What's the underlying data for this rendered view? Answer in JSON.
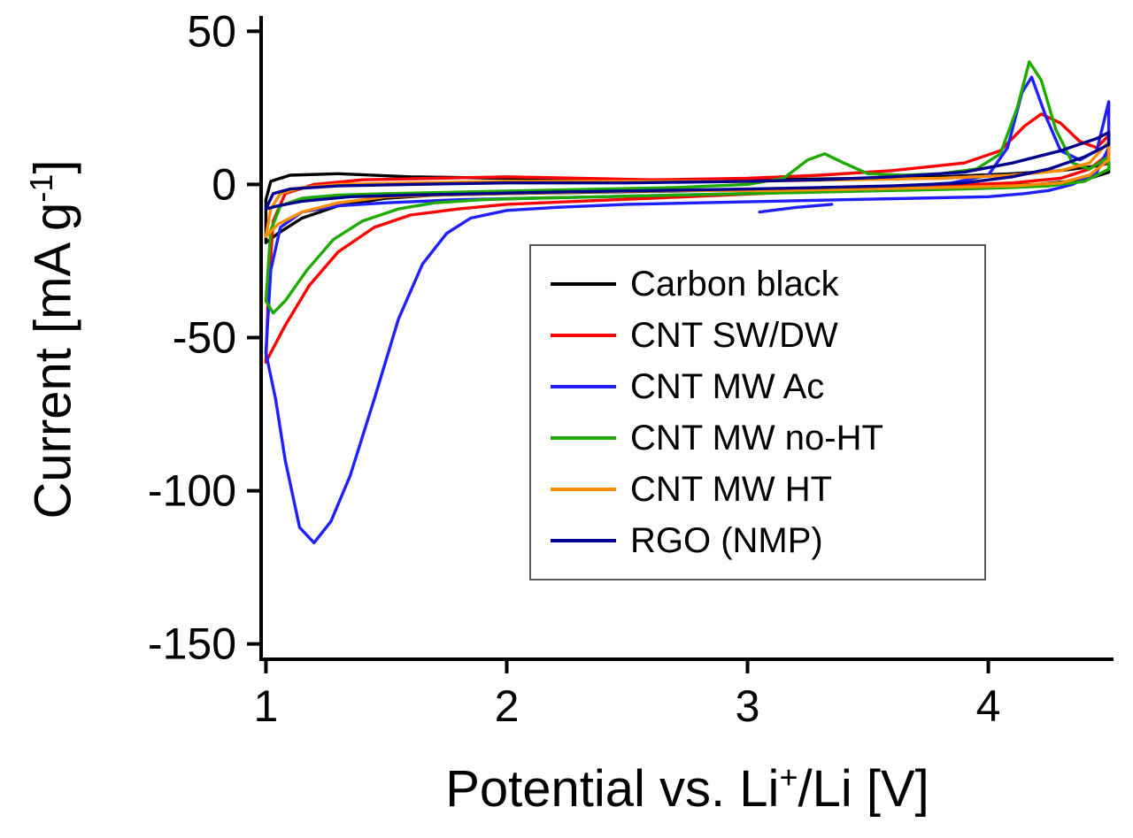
{
  "chart_data": {
    "type": "line",
    "subtype": "cyclic-voltammogram",
    "title": "",
    "xlabel": {
      "pre": "Potential vs. Li",
      "sup": "+",
      "post": "/Li [V]"
    },
    "ylabel": {
      "pre": "Current [mA g",
      "sup": "-1",
      "post": "]"
    },
    "xlim": [
      0.98,
      4.52
    ],
    "ylim": [
      -155,
      55
    ],
    "xtick_values": [
      1,
      2,
      3,
      4
    ],
    "xtick_labels": [
      "1",
      "2",
      "3",
      "4"
    ],
    "ytick_values": [
      50,
      0,
      -50,
      -100,
      -150
    ],
    "ytick_labels": [
      "50",
      "0",
      "-50",
      "-100",
      "-150"
    ],
    "grid": false,
    "legend_position": "inside center-right",
    "axis_color": "#000000",
    "series": [
      {
        "name": "Carbon black",
        "color": "#000000",
        "paths": [
          [
            [
              1.0,
              -19
            ],
            [
              1.0,
              -5
            ],
            [
              1.02,
              1
            ],
            [
              1.1,
              3
            ],
            [
              1.3,
              3.5
            ],
            [
              1.6,
              2.5
            ],
            [
              2.0,
              2
            ],
            [
              2.5,
              1.5
            ],
            [
              3.0,
              1.5
            ],
            [
              3.5,
              2
            ],
            [
              3.8,
              2.5
            ],
            [
              4.1,
              3.5
            ],
            [
              4.3,
              4.5
            ],
            [
              4.45,
              6
            ],
            [
              4.5,
              7
            ],
            [
              4.5,
              4
            ],
            [
              4.4,
              1.5
            ],
            [
              4.2,
              0
            ],
            [
              4.0,
              -0.5
            ],
            [
              3.6,
              -1
            ],
            [
              3.2,
              -1.5
            ],
            [
              2.8,
              -2
            ],
            [
              2.4,
              -2.5
            ],
            [
              2.0,
              -3
            ],
            [
              1.7,
              -3.5
            ],
            [
              1.5,
              -4.5
            ],
            [
              1.3,
              -7
            ],
            [
              1.15,
              -11
            ],
            [
              1.05,
              -16
            ],
            [
              1.0,
              -19
            ]
          ]
        ]
      },
      {
        "name": "CNT SW/DW",
        "color": "#ff0000",
        "paths": [
          [
            [
              1.0,
              -58
            ],
            [
              1.01,
              -35
            ],
            [
              1.03,
              -12
            ],
            [
              1.08,
              -3
            ],
            [
              1.2,
              0
            ],
            [
              1.4,
              1.5
            ],
            [
              1.7,
              2
            ],
            [
              2.0,
              2.5
            ],
            [
              2.3,
              2
            ],
            [
              2.6,
              1.5
            ],
            [
              3.0,
              2
            ],
            [
              3.3,
              3
            ],
            [
              3.6,
              4.5
            ],
            [
              3.9,
              7
            ],
            [
              4.05,
              11
            ],
            [
              4.15,
              19
            ],
            [
              4.22,
              23
            ],
            [
              4.3,
              20
            ],
            [
              4.38,
              14
            ],
            [
              4.45,
              12
            ],
            [
              4.5,
              16
            ],
            [
              4.5,
              10
            ],
            [
              4.42,
              5
            ],
            [
              4.3,
              2
            ],
            [
              4.1,
              0.5
            ],
            [
              3.8,
              -0.5
            ],
            [
              3.5,
              -1.5
            ],
            [
              3.2,
              -2.5
            ],
            [
              2.9,
              -3.5
            ],
            [
              2.6,
              -4.5
            ],
            [
              2.3,
              -5.5
            ],
            [
              2.0,
              -6.5
            ],
            [
              1.8,
              -8
            ],
            [
              1.6,
              -10
            ],
            [
              1.45,
              -14
            ],
            [
              1.3,
              -22
            ],
            [
              1.18,
              -33
            ],
            [
              1.08,
              -46
            ],
            [
              1.0,
              -58
            ]
          ]
        ]
      },
      {
        "name": "CNT MW Ac",
        "color": "#1f1fff",
        "paths": [
          [
            [
              1.0,
              -55
            ],
            [
              1.02,
              -28
            ],
            [
              1.06,
              -14
            ],
            [
              1.15,
              -9
            ],
            [
              1.3,
              -7
            ],
            [
              1.5,
              -6
            ],
            [
              1.8,
              -5
            ],
            [
              2.1,
              -4.5
            ],
            [
              2.4,
              -4
            ],
            [
              2.7,
              -3.5
            ],
            [
              3.0,
              -3
            ],
            [
              3.3,
              -2
            ],
            [
              3.6,
              -1
            ],
            [
              3.85,
              0.5
            ],
            [
              4.0,
              3
            ],
            [
              4.08,
              12
            ],
            [
              4.14,
              30
            ],
            [
              4.18,
              35
            ],
            [
              4.24,
              22
            ],
            [
              4.3,
              11
            ],
            [
              4.38,
              8
            ],
            [
              4.45,
              11
            ],
            [
              4.5,
              27
            ],
            [
              4.5,
              12
            ],
            [
              4.45,
              4
            ],
            [
              4.35,
              0
            ],
            [
              4.25,
              -2
            ],
            [
              4.15,
              -3
            ],
            [
              4.0,
              -4
            ],
            [
              3.7,
              -4.5
            ],
            [
              3.4,
              -5
            ],
            [
              3.1,
              -5.5
            ],
            [
              2.8,
              -6
            ],
            [
              2.5,
              -6.5
            ],
            [
              2.2,
              -7.5
            ],
            [
              2.0,
              -8.5
            ],
            [
              1.85,
              -11
            ],
            [
              1.75,
              -16
            ],
            [
              1.65,
              -26
            ],
            [
              1.55,
              -44
            ],
            [
              1.45,
              -70
            ],
            [
              1.35,
              -95
            ],
            [
              1.27,
              -110
            ],
            [
              1.2,
              -117
            ],
            [
              1.14,
              -112
            ],
            [
              1.08,
              -90
            ],
            [
              1.04,
              -70
            ],
            [
              1.0,
              -55
            ]
          ],
          [
            [
              3.05,
              -9
            ],
            [
              3.2,
              -7.5
            ],
            [
              3.35,
              -6.5
            ]
          ]
        ]
      },
      {
        "name": "CNT MW no-HT",
        "color": "#1faa00",
        "paths": [
          [
            [
              1.0,
              -38
            ],
            [
              1.02,
              -15
            ],
            [
              1.06,
              -7
            ],
            [
              1.15,
              -4.5
            ],
            [
              1.3,
              -3.5
            ],
            [
              1.5,
              -3
            ],
            [
              1.8,
              -2.5
            ],
            [
              2.1,
              -2
            ],
            [
              2.4,
              -1.5
            ],
            [
              2.7,
              -1
            ],
            [
              3.0,
              0
            ],
            [
              3.15,
              2
            ],
            [
              3.25,
              8
            ],
            [
              3.32,
              10
            ],
            [
              3.4,
              7
            ],
            [
              3.5,
              3.5
            ],
            [
              3.65,
              3
            ],
            [
              3.8,
              3.5
            ],
            [
              3.95,
              5
            ],
            [
              4.05,
              10
            ],
            [
              4.12,
              25
            ],
            [
              4.17,
              40
            ],
            [
              4.22,
              34
            ],
            [
              4.28,
              18
            ],
            [
              4.35,
              7
            ],
            [
              4.42,
              5
            ],
            [
              4.5,
              9
            ],
            [
              4.5,
              5
            ],
            [
              4.4,
              1
            ],
            [
              4.25,
              -0.5
            ],
            [
              4.1,
              -1
            ],
            [
              3.9,
              -1.5
            ],
            [
              3.6,
              -2
            ],
            [
              3.3,
              -2.5
            ],
            [
              3.0,
              -3
            ],
            [
              2.7,
              -3.5
            ],
            [
              2.4,
              -4
            ],
            [
              2.1,
              -4.5
            ],
            [
              1.9,
              -5
            ],
            [
              1.7,
              -6
            ],
            [
              1.55,
              -8
            ],
            [
              1.4,
              -12
            ],
            [
              1.28,
              -18
            ],
            [
              1.17,
              -28
            ],
            [
              1.08,
              -38
            ],
            [
              1.03,
              -42
            ],
            [
              1.0,
              -38
            ]
          ]
        ]
      },
      {
        "name": "CNT MW HT",
        "color": "#ff8c00",
        "paths": [
          [
            [
              1.0,
              -17
            ],
            [
              1.02,
              -8
            ],
            [
              1.06,
              -3
            ],
            [
              1.15,
              -1
            ],
            [
              1.3,
              0
            ],
            [
              1.6,
              0.5
            ],
            [
              2.0,
              1
            ],
            [
              2.5,
              1
            ],
            [
              3.0,
              1
            ],
            [
              3.4,
              1.5
            ],
            [
              3.8,
              2
            ],
            [
              4.1,
              3
            ],
            [
              4.3,
              4.5
            ],
            [
              4.42,
              7
            ],
            [
              4.5,
              14
            ],
            [
              4.5,
              8
            ],
            [
              4.42,
              3
            ],
            [
              4.3,
              0.5
            ],
            [
              4.1,
              -0.5
            ],
            [
              3.8,
              -1
            ],
            [
              3.5,
              -1.5
            ],
            [
              3.1,
              -2
            ],
            [
              2.7,
              -2
            ],
            [
              2.3,
              -2.5
            ],
            [
              2.0,
              -3
            ],
            [
              1.7,
              -3.5
            ],
            [
              1.5,
              -4
            ],
            [
              1.3,
              -6
            ],
            [
              1.15,
              -9
            ],
            [
              1.05,
              -13
            ],
            [
              1.0,
              -17
            ]
          ]
        ]
      },
      {
        "name": "RGO (NMP)",
        "color": "#00008f",
        "paths": [
          [
            [
              1.0,
              -8
            ],
            [
              1.03,
              -3
            ],
            [
              1.1,
              -1.5
            ],
            [
              1.3,
              -0.5
            ],
            [
              1.6,
              0
            ],
            [
              2.0,
              0.5
            ],
            [
              2.5,
              0.5
            ],
            [
              3.0,
              1
            ],
            [
              3.3,
              1.5
            ],
            [
              3.6,
              2.5
            ],
            [
              3.9,
              4
            ],
            [
              4.1,
              7
            ],
            [
              4.3,
              11
            ],
            [
              4.45,
              15
            ],
            [
              4.5,
              17
            ],
            [
              4.5,
              13
            ],
            [
              4.4,
              9
            ],
            [
              4.25,
              5
            ],
            [
              4.1,
              2.5
            ],
            [
              3.9,
              0.5
            ],
            [
              3.6,
              -0.5
            ],
            [
              3.3,
              -1
            ],
            [
              3.0,
              -1.5
            ],
            [
              2.6,
              -2
            ],
            [
              2.2,
              -2.5
            ],
            [
              1.9,
              -3
            ],
            [
              1.6,
              -3.5
            ],
            [
              1.35,
              -4
            ],
            [
              1.15,
              -5.5
            ],
            [
              1.05,
              -7
            ],
            [
              1.0,
              -8
            ]
          ]
        ]
      }
    ]
  }
}
